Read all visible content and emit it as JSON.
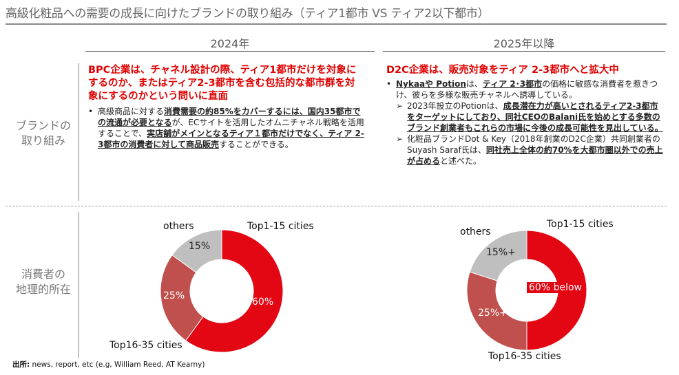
{
  "title": "高級化粧品への需要の成長に向けたブランドの取り組み（ティア1都市 VS ティア2以下都市）",
  "columns": {
    "left": "2024年",
    "right": "2025年以降"
  },
  "row_labels": {
    "brand": [
      "ブランドの",
      "取り組み"
    ],
    "geo": [
      "消費者の",
      "地理的所在"
    ]
  },
  "left_block": {
    "headline": "BPC企業は、チャネル設計の際、ティア1都市だけを対象にするのか、またはティア2-3都市を含む包括的な都市群を対象にするのかという問いに直面",
    "bullet_parts": [
      "高級商品に対する",
      "消費需要の約85%をカバーするには、国内35都市での流通が必要となる",
      "が、ECサイトを活用したオムニチャネル戦略を活用することで、",
      "実店舗がメインとなるティア１都市だけでなく、ティア 2-3都市の消費者に対して商品販売",
      "することができる。"
    ]
  },
  "right_block": {
    "headline": "D2C企業は、販売対象をティア 2-3都市へと拡大中",
    "bullet_parts": [
      "Nykaaや Potion",
      "は、",
      "ティア 2･3都市",
      "の価格に敏感な消費者を惹きつけ、彼らを多様な販売チャネルへ誘導している。"
    ],
    "sub1_parts": [
      "2023年設立のPotionは、",
      "成長潜在力が高いとされるティア2-3都市をターゲットにしており、同社CEOのBalani氏を始めとする多数のブランド創業者もこれらの市場に今後の成長可能性を見出している。"
    ],
    "sub2_parts": [
      "化粧品ブランドDot & Key（2018年創業のD2C企業）共同創業者のSuyash Saraf氏は、",
      "同社売上全体の約70%を大都市圏以外での売上が占める",
      "と述べた。"
    ]
  },
  "chart_data": [
    {
      "type": "pie",
      "donut": true,
      "period": "2024年",
      "categories": [
        "Top1-15 cities",
        "Top16-35 cities",
        "others"
      ],
      "values": [
        60,
        25,
        15
      ],
      "value_labels": [
        "60%",
        "25%",
        "15%"
      ],
      "colors": [
        "#e30613",
        "#c0504d",
        "#bfbfbf"
      ]
    },
    {
      "type": "pie",
      "donut": true,
      "period": "2025年以降",
      "categories": [
        "Top1-15 cities",
        "Top16-35 cities",
        "others"
      ],
      "values": [
        50,
        30,
        20
      ],
      "value_labels": [
        "60% below",
        "25%+",
        "15%+"
      ],
      "colors": [
        "#e30613",
        "#c0504d",
        "#bfbfbf"
      ]
    }
  ],
  "source": {
    "label": "出所:",
    "text": "news, report, etc (e.g, William Reed, AT Kearny)"
  }
}
